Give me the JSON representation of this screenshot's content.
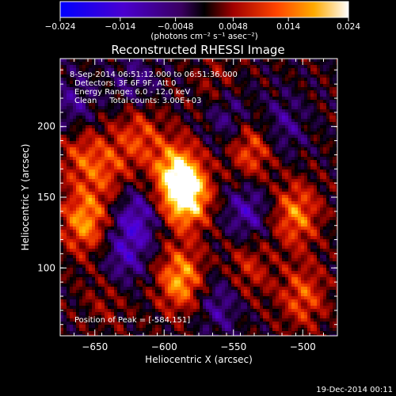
{
  "chart_data": {
    "type": "heatmap",
    "title": "Reconstructed RHESSI Image",
    "xlabel": "Heliocentric X (arcsec)",
    "ylabel": "Heliocentric Y (arcsec)",
    "xlim": [
      -675,
      -475
    ],
    "ylim": [
      52,
      248
    ],
    "x_ticks": [
      -650,
      -600,
      -550,
      -500
    ],
    "x_tick_labels": [
      "-650",
      "-600",
      "-550",
      "-500"
    ],
    "y_ticks": [
      100,
      150,
      200
    ],
    "y_tick_labels": [
      "100",
      "150",
      "200"
    ],
    "colorbar": {
      "range": [
        -0.024,
        0.024
      ],
      "ticks": [
        -0.024,
        -0.014,
        -0.0048,
        0.0048,
        0.014,
        0.024
      ],
      "tick_labels": [
        "-0.024",
        "-0.014",
        "-0.0048",
        "0.0048",
        "0.014",
        "0.024"
      ],
      "unit_label": "(photons cm⁻² s⁻¹ asec⁻²)",
      "colors": [
        "#0000ff",
        "#5500cc",
        "#000000",
        "#cc2200",
        "#ff8800",
        "#ffffff"
      ]
    },
    "annotations": [
      "8-Sep-2014 06:51:12.000 to 06:51:36.000",
      "Detectors: 3F 6F 9F, Att 0",
      "Energy Range: 6.0 - 12.0 keV",
      "Clean     Total counts: 3.00E+03"
    ],
    "peak_label": "Position of Peak = [-584,151]",
    "sources": [
      {
        "x": -584,
        "y": 151,
        "intensity": 0.024
      },
      {
        "x": -592,
        "y": 168,
        "intensity": 0.017
      },
      {
        "x": -588,
        "y": 92,
        "intensity": 0.018
      },
      {
        "x": -657,
        "y": 133,
        "intensity": 0.017
      },
      {
        "x": -505,
        "y": 138,
        "intensity": 0.015
      },
      {
        "x": -537,
        "y": 183,
        "intensity": 0.013
      },
      {
        "x": -618,
        "y": 195,
        "intensity": 0.011
      },
      {
        "x": -660,
        "y": 180,
        "intensity": 0.01
      },
      {
        "x": -640,
        "y": 170,
        "intensity": 0.009
      },
      {
        "x": -500,
        "y": 80,
        "intensity": 0.012
      },
      {
        "x": -540,
        "y": 100,
        "intensity": 0.009
      },
      {
        "x": -640,
        "y": 80,
        "intensity": 0.006
      },
      {
        "x": -560,
        "y": 225,
        "intensity": 0.008
      }
    ],
    "negative_regions": [
      {
        "x": -620,
        "y": 135,
        "intensity": -0.012
      },
      {
        "x": -630,
        "y": 105,
        "intensity": -0.01
      },
      {
        "x": -540,
        "y": 140,
        "intensity": -0.011
      },
      {
        "x": -555,
        "y": 210,
        "intensity": -0.011
      },
      {
        "x": -560,
        "y": 75,
        "intensity": -0.009
      },
      {
        "x": -665,
        "y": 215,
        "intensity": -0.008
      },
      {
        "x": -515,
        "y": 200,
        "intensity": -0.008
      },
      {
        "x": -620,
        "y": 230,
        "intensity": -0.007
      }
    ]
  },
  "footer_timestamp": "19-Dec-2014 00:11"
}
